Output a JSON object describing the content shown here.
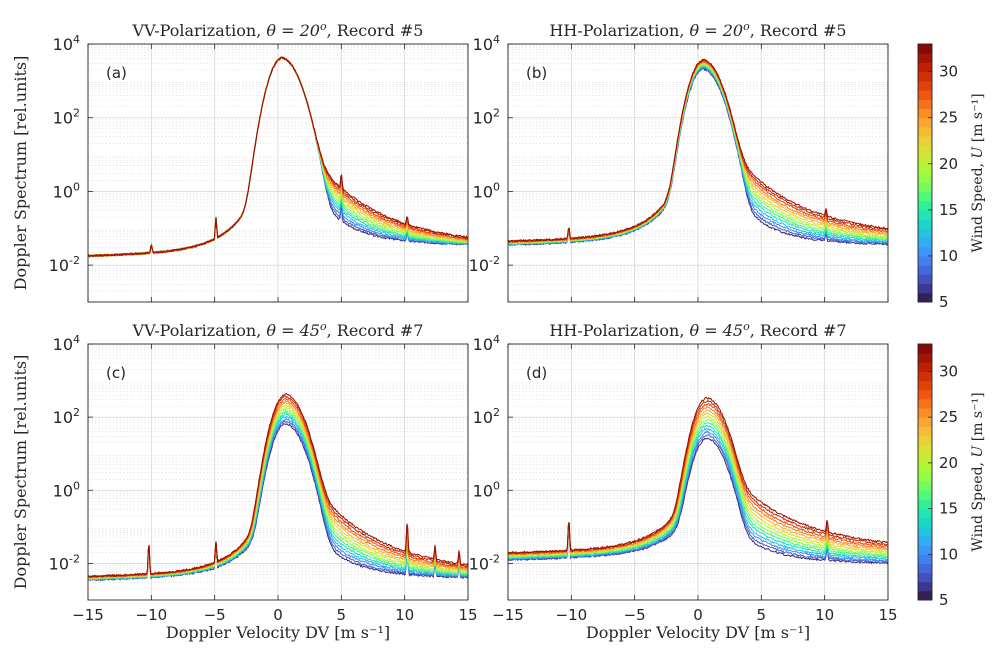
{
  "chart_data": [
    {
      "type": "line",
      "panel_label": "(a)",
      "title_prefix": "VV-Polarization, ",
      "title_theta": "θ = 20",
      "title_sup": "o",
      "title_suffix": ", Record #5",
      "xlabel": "",
      "ylabel": "Doppler Spectrum [rel.units]",
      "xlim": [
        -15,
        15
      ],
      "ylim_log10": [
        -3,
        4
      ],
      "y_scale": "log",
      "xticks": [
        -15,
        -10,
        -5,
        0,
        5,
        10,
        15
      ],
      "xtick_labels": [
        "",
        "",
        "",
        "",
        "",
        "",
        ""
      ],
      "ytick_exponents": [
        -2,
        0,
        2,
        4
      ],
      "grid": true,
      "series_param": "wind speed U",
      "wind_speeds": [
        6,
        8,
        10,
        12,
        14,
        16,
        18,
        20,
        22,
        24,
        26,
        28,
        30,
        32
      ],
      "peak_v": 0.3,
      "peak_log10_range": [
        3.6,
        3.6
      ],
      "neg_floor_log10": [
        -1.6,
        -1.6
      ],
      "pos_floor_log10": [
        -1.35,
        -1.35
      ],
      "spikes": [
        [
          -10,
          0.25
        ],
        [
          -4.9,
          0.6
        ],
        [
          5.0,
          0.45
        ],
        [
          10.2,
          0.25
        ]
      ]
    },
    {
      "type": "line",
      "panel_label": "(b)",
      "title_prefix": "HH-Polarization, ",
      "title_theta": "θ = 20",
      "title_sup": "o",
      "title_suffix": ", Record #5",
      "xlabel": "",
      "ylabel": "",
      "xlim": [
        -15,
        15
      ],
      "ylim_log10": [
        -3,
        4
      ],
      "y_scale": "log",
      "xticks": [
        -15,
        -10,
        -5,
        0,
        5,
        10,
        15
      ],
      "xtick_labels": [
        "",
        "",
        "",
        "",
        "",
        "",
        ""
      ],
      "ytick_exponents": [
        -2,
        0,
        2,
        4
      ],
      "grid": true,
      "series_param": "wind speed U",
      "wind_speeds": [
        6,
        8,
        10,
        12,
        14,
        16,
        18,
        20,
        22,
        24,
        26,
        28,
        30,
        32
      ],
      "peak_v": 0.4,
      "peak_log10_range": [
        3.3,
        3.55
      ],
      "neg_floor_log10": [
        -1.3,
        -1.2
      ],
      "pos_floor_log10": [
        -1.35,
        -1.1
      ],
      "spikes": [
        [
          -10.2,
          0.35
        ],
        [
          10.1,
          0.2
        ]
      ]
    },
    {
      "type": "line",
      "panel_label": "(c)",
      "title_prefix": "VV-Polarization, ",
      "title_theta": "θ = 45",
      "title_sup": "o",
      "title_suffix": ", Record #7",
      "xlabel": "Doppler Velocity DV [m s⁻¹]",
      "ylabel": "Doppler Spectrum [rel.units]",
      "xlim": [
        -15,
        15
      ],
      "ylim_log10": [
        -3,
        4
      ],
      "y_scale": "log",
      "xticks": [
        -15,
        -10,
        -5,
        0,
        5,
        10,
        15
      ],
      "xtick_labels": [
        "−15",
        "−10",
        "−5",
        "0",
        "5",
        "10",
        "15"
      ],
      "ytick_exponents": [
        -2,
        0,
        2,
        4
      ],
      "grid": true,
      "series_param": "wind speed U",
      "wind_speeds": [
        6,
        8,
        10,
        12,
        14,
        16,
        18,
        20,
        22,
        24,
        26,
        28,
        30,
        32
      ],
      "peak_v": 0.6,
      "peak_log10_range": [
        1.8,
        2.6
      ],
      "neg_floor_log10": [
        -2.3,
        -2.2
      ],
      "pos_floor_log10": [
        -2.3,
        -2.15
      ],
      "spikes": [
        [
          -10.2,
          1.0
        ],
        [
          -4.9,
          0.6
        ],
        [
          10.2,
          1.0
        ],
        [
          12.4,
          0.4
        ],
        [
          14.3,
          0.4
        ]
      ]
    },
    {
      "type": "line",
      "panel_label": "(d)",
      "title_prefix": "HH-Polarization, ",
      "title_theta": "θ = 45",
      "title_sup": "o",
      "title_suffix": ", Record #7",
      "xlabel": "Doppler Velocity DV [m s⁻¹]",
      "ylabel": "",
      "xlim": [
        -15,
        15
      ],
      "ylim_log10": [
        -3,
        4
      ],
      "y_scale": "log",
      "xticks": [
        -15,
        -10,
        -5,
        0,
        5,
        10,
        15
      ],
      "xtick_labels": [
        "−15",
        "−10",
        "−5",
        "0",
        "5",
        "10",
        "15"
      ],
      "ytick_exponents": [
        -2,
        0,
        2,
        4
      ],
      "grid": true,
      "series_param": "wind speed U",
      "wind_speeds": [
        6,
        8,
        10,
        12,
        14,
        16,
        18,
        20,
        22,
        24,
        26,
        28,
        30,
        32
      ],
      "peak_v": 0.7,
      "peak_log10_range": [
        1.4,
        2.5
      ],
      "neg_floor_log10": [
        -1.75,
        -1.55
      ],
      "pos_floor_log10": [
        -1.9,
        -1.5
      ],
      "spikes": [
        [
          -10.2,
          1.0
        ],
        [
          10.2,
          0.4
        ]
      ]
    }
  ],
  "colorbars": [
    {
      "label_prefix": "Wind Speed, ",
      "label_var": "U",
      "label_unit": " [m s⁻¹]",
      "min": 5,
      "max": 33,
      "ticks": [
        5,
        10,
        15,
        20,
        25,
        30
      ],
      "tick_labels": [
        "5",
        "10",
        "15",
        "20",
        "25",
        "30"
      ]
    },
    {
      "label_prefix": "Wind Speed, ",
      "label_var": "U",
      "label_unit": " [m s⁻¹]",
      "min": 5,
      "max": 33,
      "ticks": [
        5,
        10,
        15,
        20,
        25,
        30
      ],
      "tick_labels": [
        "5",
        "10",
        "15",
        "20",
        "25",
        "30"
      ]
    }
  ],
  "y_tick_base": "10",
  "colormap": [
    "#30123b",
    "#4145ab",
    "#4675ed",
    "#39a2fc",
    "#1bcfd4",
    "#24eca6",
    "#61fc6c",
    "#a4fc3b",
    "#d1e834",
    "#f3c63a",
    "#fe9b2d",
    "#f36315",
    "#d93806",
    "#b11901",
    "#7a0403"
  ]
}
